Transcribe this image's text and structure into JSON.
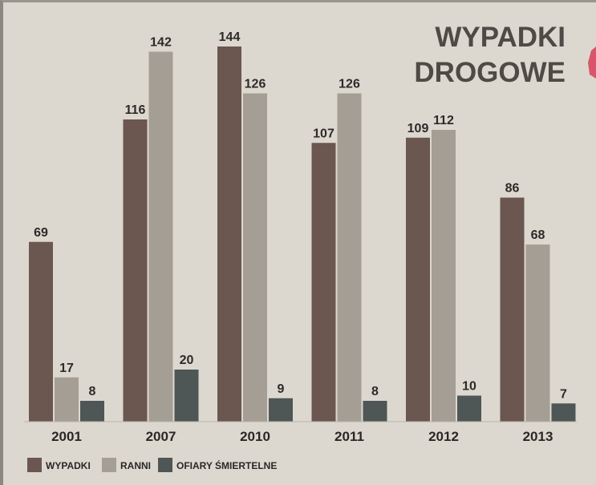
{
  "chart_data": {
    "type": "bar",
    "title": [
      "WYPADKI",
      "DROGOWE"
    ],
    "categories": [
      "2001",
      "2007",
      "2010",
      "2011",
      "2012",
      "2013"
    ],
    "series": [
      {
        "name": "WYPADKI",
        "values": [
          69,
          116,
          144,
          107,
          109,
          86
        ],
        "color": "#6b5650"
      },
      {
        "name": "RANNI",
        "values": [
          17,
          142,
          126,
          126,
          112,
          68
        ],
        "color": "#a59e95"
      },
      {
        "name": "OFIARY ŚMIERTELNE",
        "values": [
          8,
          20,
          9,
          8,
          10,
          7
        ],
        "color": "#4e5755"
      }
    ],
    "ylim": [
      0,
      150
    ],
    "grid": false,
    "legend_position": "bottom-left"
  },
  "colors": {
    "background": "#dcd8d0",
    "title": "#504a46",
    "accent_tab": "#d9566a"
  }
}
